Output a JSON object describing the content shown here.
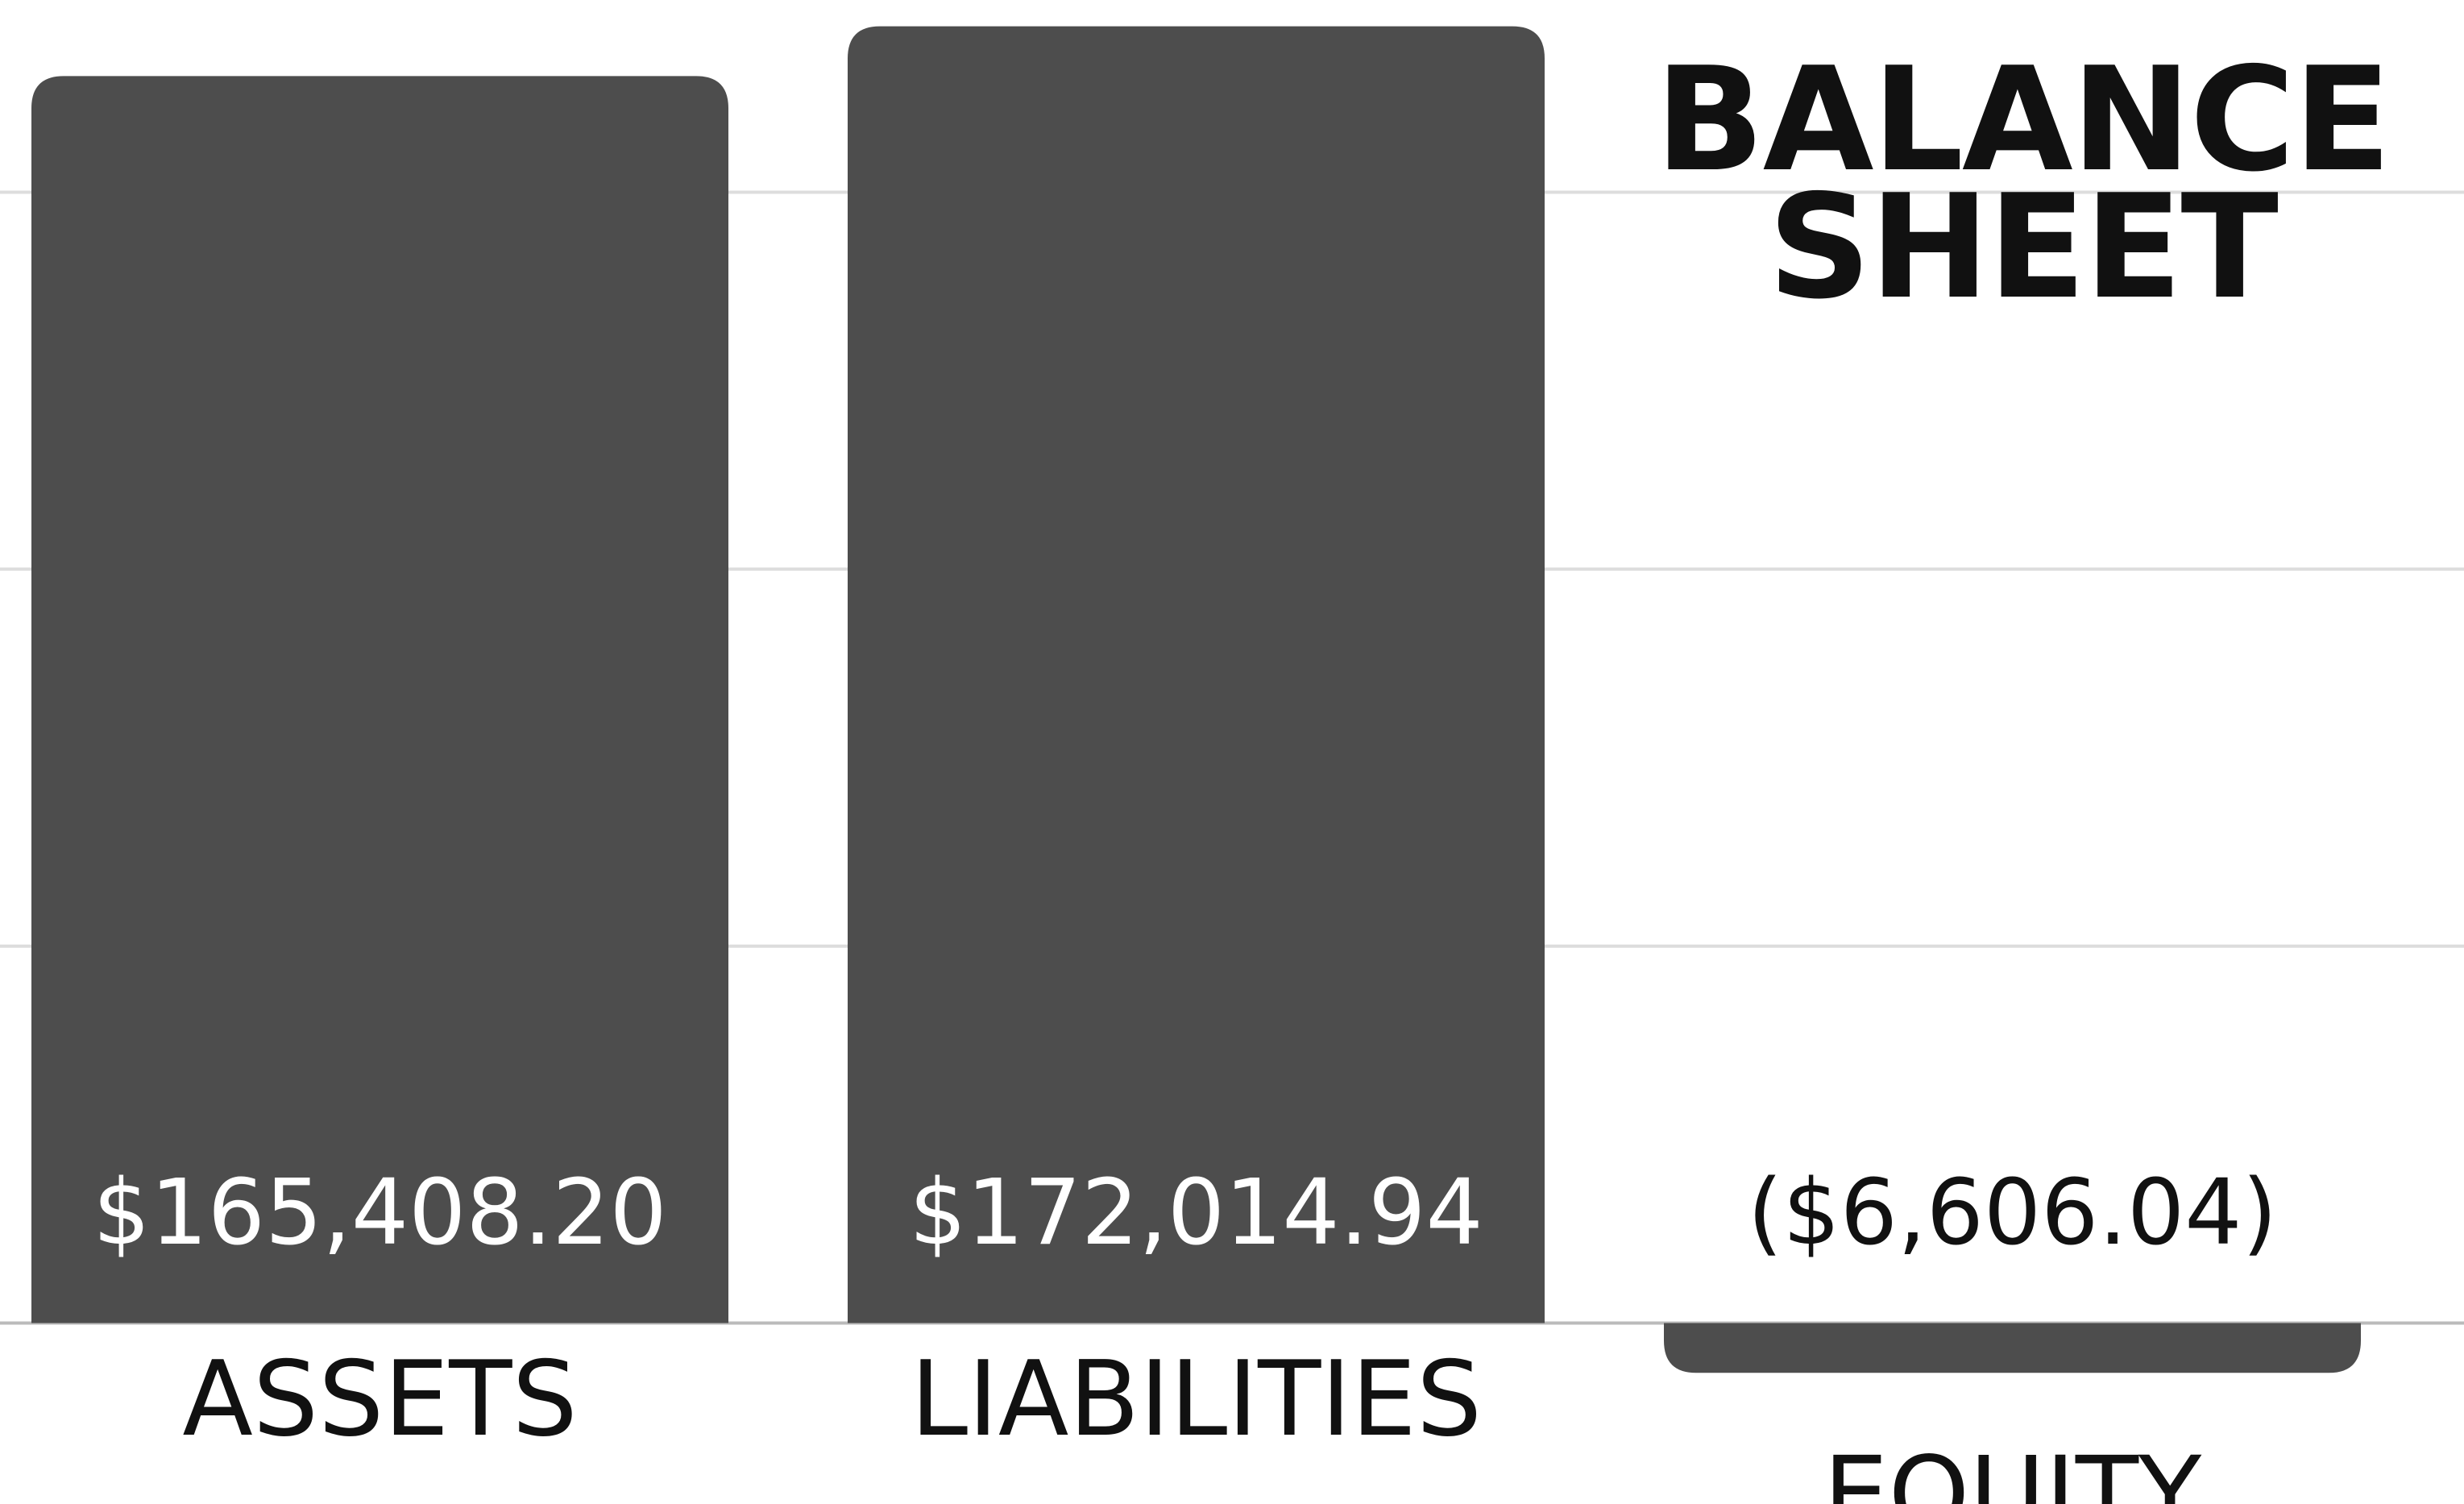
{
  "chart_data": {
    "type": "bar",
    "title": "BALANCE SHEET",
    "categories": [
      "ASSETS",
      "LIABILITIES",
      "EQUITY"
    ],
    "values": [
      165408.2,
      172014.94,
      -6606.04
    ],
    "value_labels": [
      "$165,408.20",
      "$172,014.94",
      "($6,606.04)"
    ],
    "color": "#4d4d4d",
    "ylim": [
      -24000,
      175500
    ],
    "yticks": [
      0,
      50000,
      100000,
      150000
    ],
    "grid": true
  }
}
